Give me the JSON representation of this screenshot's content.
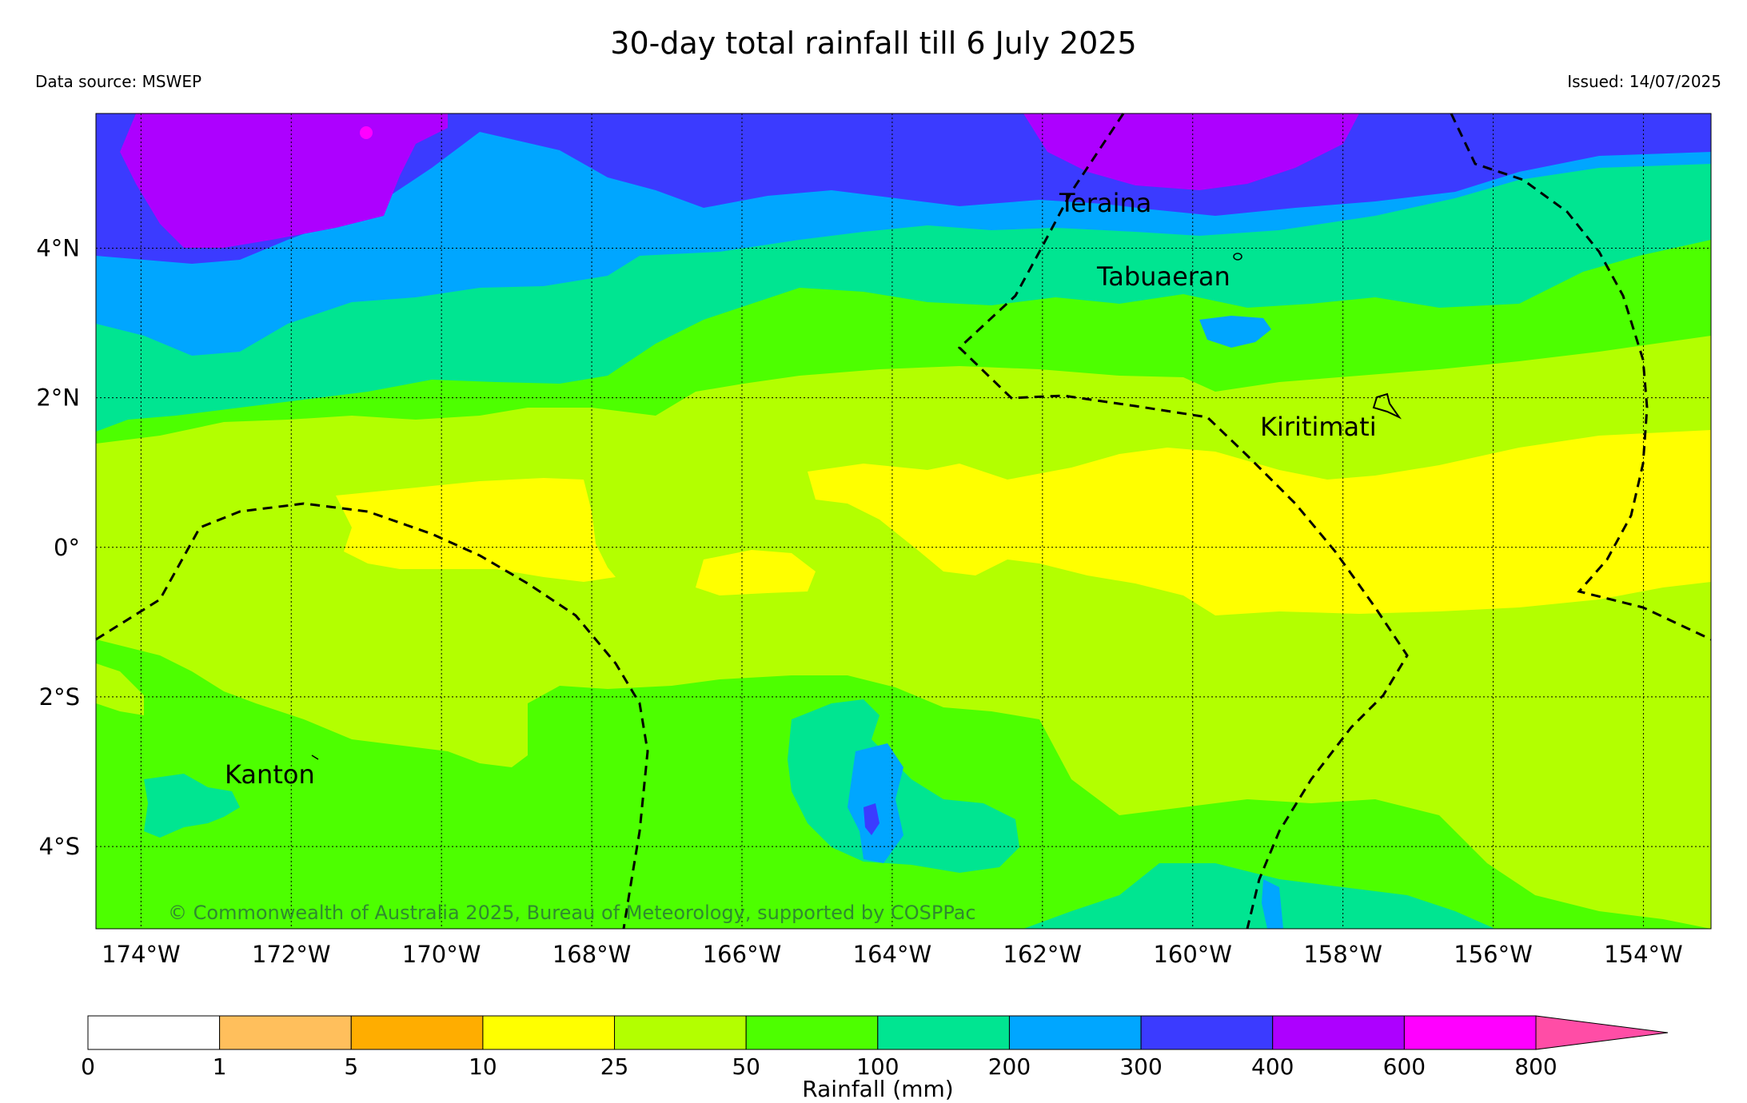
{
  "title": "30-day total rainfall till 6 July 2025",
  "data_source": "Data source: MSWEP",
  "issued": "Issued: 14/07/2025",
  "copyright": "© Commonwealth of Australia 2025, Bureau of Meteorology, supported by COSPPac",
  "map": {
    "lon_ticks": [
      "174°W",
      "172°W",
      "170°W",
      "168°W",
      "166°W",
      "164°W",
      "162°W",
      "160°W",
      "158°W",
      "156°W",
      "154°W"
    ],
    "lat_ticks": [
      "4°N",
      "2°N",
      "0°",
      "2°S",
      "4°S"
    ],
    "lon_range": [
      -174.6,
      -153.1
    ],
    "lat_range": [
      -5.1,
      5.8
    ],
    "places": [
      "Teraina",
      "Tabuaeran",
      "Kiritimati",
      "Kanton"
    ]
  },
  "colorbar": {
    "label": "Rainfall (mm)",
    "bounds": [
      "0",
      "1",
      "5",
      "10",
      "25",
      "50",
      "100",
      "200",
      "300",
      "400",
      "600",
      "800"
    ],
    "colors": [
      "#ffffff",
      "#ffbf5c",
      "#ffad00",
      "#ffff00",
      "#b3ff00",
      "#4dff00",
      "#00e591",
      "#00a6ff",
      "#3b3bff",
      "#ad00ff",
      "#ff00ff",
      "#ff4da6"
    ]
  }
}
